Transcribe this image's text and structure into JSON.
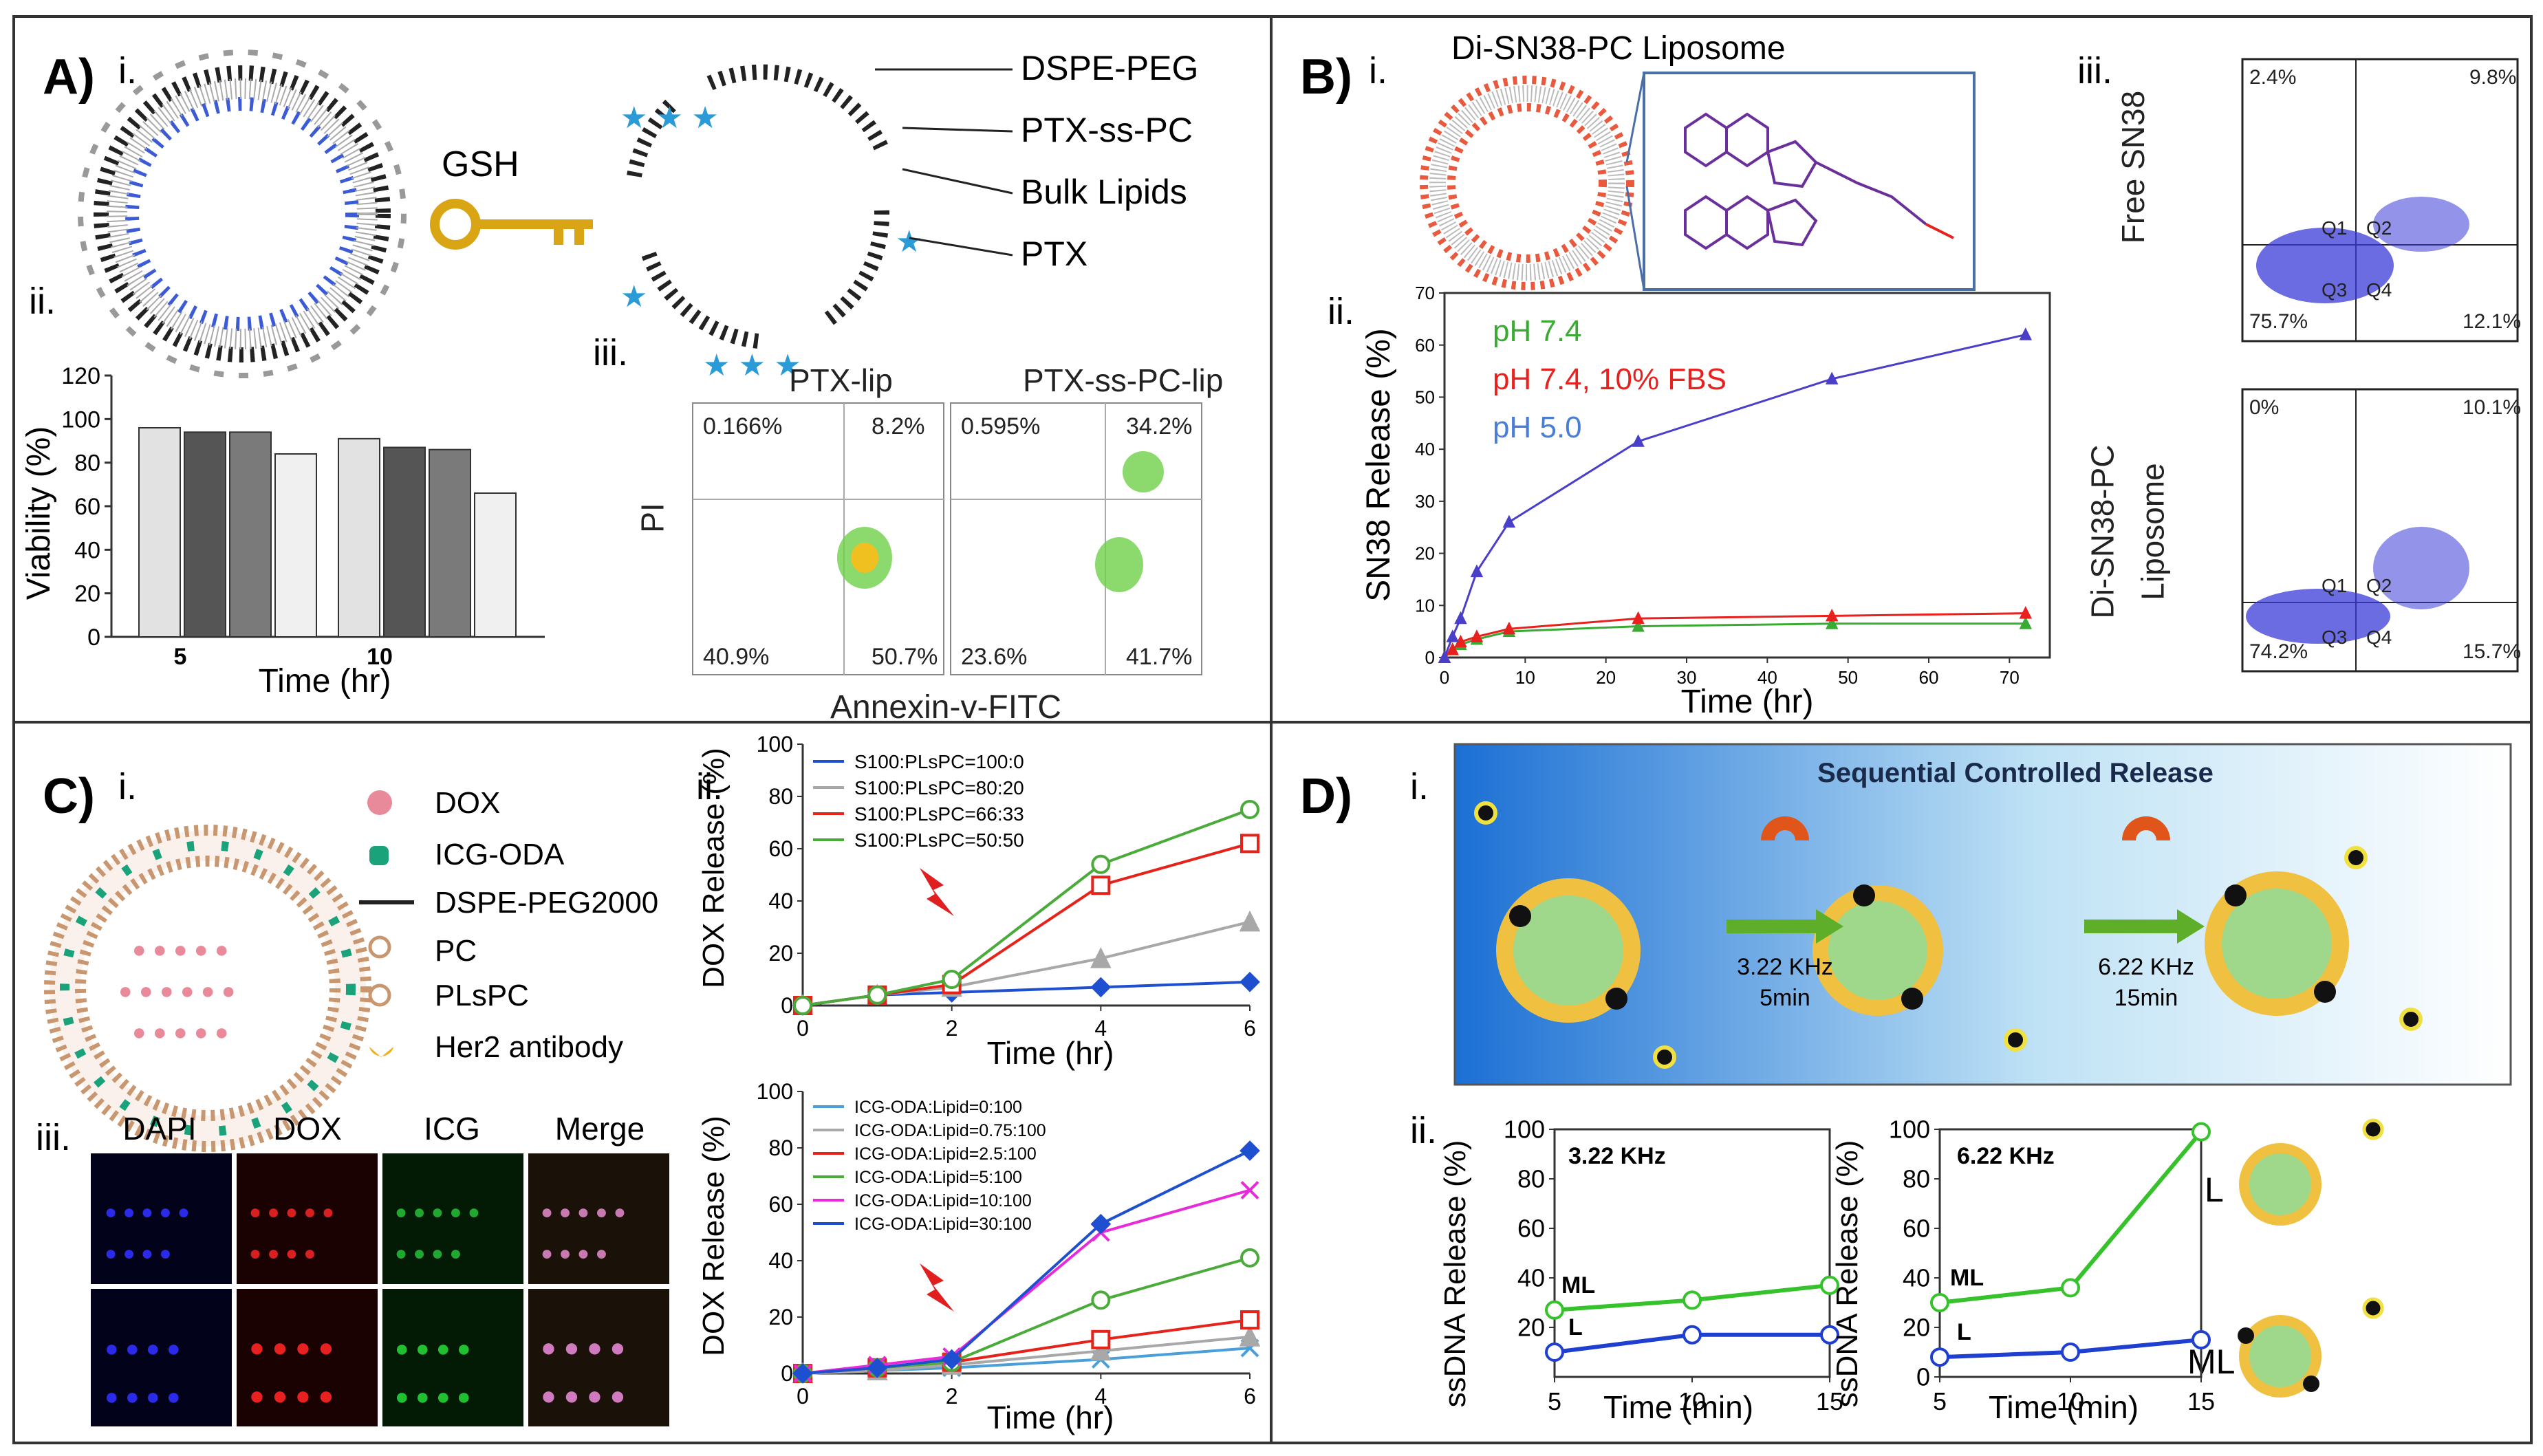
{
  "figure": {
    "A": {
      "letter": "A)",
      "sub_i": "i.",
      "sub_ii": "ii.",
      "sub_iii": "iii.",
      "gsh_label": "GSH",
      "legend": [
        "DSPE-PEG",
        "PTX-ss-PC",
        "Bulk Lipids",
        "PTX"
      ],
      "chart_ii": {
        "ylabel": "Viability (%)",
        "xlabel": "Time (hr)",
        "yticks": [
          "0",
          "20",
          "40",
          "60",
          "80",
          "100",
          "120"
        ],
        "groups": [
          "5",
          "10"
        ],
        "values": [
          [
            96,
            94,
            94,
            84
          ],
          [
            91,
            87,
            86,
            66
          ]
        ]
      },
      "flow_iii": {
        "ylabel": "PI",
        "xlabel": "Annexin-v-FITC",
        "plots": [
          {
            "title": "PTX-lip",
            "q_ul": "0.166%",
            "q_ur": "8.2%",
            "q_ll": "40.9%",
            "q_lr": "50.7%"
          },
          {
            "title": "PTX-ss-PC-lip",
            "q_ul": "0.595%",
            "q_ur": "34.2%",
            "q_ll": "23.6%",
            "q_lr": "41.7%"
          }
        ]
      }
    },
    "B": {
      "letter": "B)",
      "sub_i": "i.",
      "sub_ii": "ii.",
      "sub_iii": "iii.",
      "liposome_title": "Di-SN38-PC Liposome",
      "flow_iii": [
        {
          "label": "Free SN38",
          "q_ul": "2.4%",
          "q_ur": "9.8%",
          "q_ll": "75.7%",
          "q_lr": "12.1%",
          "q1": "Q1",
          "q2": "Q2",
          "q3": "Q3",
          "q4": "Q4"
        },
        {
          "label1": "Di-SN38-PC",
          "label2": "Liposome",
          "q_ul": "0%",
          "q_ur": "10.1%",
          "q_ll": "74.2%",
          "q_lr": "15.7%",
          "q1": "Q1",
          "q2": "Q2",
          "q3": "Q3",
          "q4": "Q4"
        }
      ]
    },
    "C": {
      "letter": "C)",
      "sub_i": "i.",
      "sub_ii": "ii.",
      "sub_iii": "iii.",
      "legend": [
        "DOX",
        "ICG-ODA",
        "DSPE-PEG2000",
        "PC",
        "PLsPC",
        "Her2 antibody"
      ],
      "micro_headers": [
        "DAPI",
        "DOX",
        "ICG",
        "Merge"
      ]
    },
    "D": {
      "letter": "D)",
      "sub_i": "i.",
      "sub_ii": "ii.",
      "scheme_title": "Sequential Controlled Release",
      "step1": [
        "3.22 KHz",
        "5min"
      ],
      "step2": [
        "6.22 KHz",
        "15min"
      ],
      "legend_L": "L",
      "legend_ML": "ML"
    }
  },
  "chart_data": [
    {
      "id": "B-ii",
      "type": "line",
      "title": "",
      "xlabel": "Time (hr)",
      "ylabel": "SN38 Release (%)",
      "xlim": [
        0,
        75
      ],
      "ylim": [
        0,
        70
      ],
      "xticks": [
        0,
        10,
        20,
        30,
        40,
        50,
        60,
        70
      ],
      "yticks": [
        0,
        10,
        20,
        30,
        40,
        50,
        60,
        70
      ],
      "series": [
        {
          "name": "pH 7.4",
          "color": "#3aaa35",
          "x": [
            0,
            1,
            2,
            4,
            8,
            24,
            48,
            72
          ],
          "y": [
            0,
            1.5,
            2.5,
            3.5,
            5,
            6,
            6.5,
            6.5
          ]
        },
        {
          "name": "pH 7.4, 10% FBS",
          "color": "#e8211e",
          "x": [
            0,
            1,
            2,
            4,
            8,
            24,
            48,
            72
          ],
          "y": [
            0,
            1.5,
            3,
            4,
            5.5,
            7.5,
            8,
            8.5
          ]
        },
        {
          "name": "pH 5.0",
          "color": "#4a3fc9",
          "x": [
            0,
            1,
            2,
            4,
            8,
            24,
            48,
            72
          ],
          "y": [
            0,
            4,
            7.5,
            16.5,
            26,
            41.5,
            53.5,
            62
          ]
        }
      ]
    },
    {
      "id": "C-ii-top",
      "type": "line",
      "xlabel": "Time (hr)",
      "ylabel": "DOX Release (%)",
      "xlim": [
        0,
        6
      ],
      "ylim": [
        0,
        100
      ],
      "xticks": [
        0,
        2,
        4,
        6
      ],
      "yticks": [
        0,
        20,
        40,
        60,
        80,
        100
      ],
      "series": [
        {
          "name": "S100:PLsPC=100:0",
          "color": "#1f4fd1",
          "marker": "diamond",
          "x": [
            0,
            1,
            2,
            4,
            6
          ],
          "y": [
            0,
            4,
            5,
            7,
            9
          ]
        },
        {
          "name": "S100:PLsPC=80:20",
          "color": "#a8a8a8",
          "marker": "triangle",
          "x": [
            0,
            1,
            2,
            4,
            6
          ],
          "y": [
            0,
            4,
            7,
            18,
            32
          ]
        },
        {
          "name": "S100:PLsPC=66:33",
          "color": "#e5231b",
          "marker": "square",
          "x": [
            0,
            1,
            2,
            4,
            6
          ],
          "y": [
            0,
            4,
            8,
            46,
            62
          ]
        },
        {
          "name": "S100:PLsPC=50:50",
          "color": "#4aaa3a",
          "marker": "circle",
          "x": [
            0,
            1,
            2,
            4,
            6
          ],
          "y": [
            0,
            4,
            10,
            54,
            75
          ]
        }
      ]
    },
    {
      "id": "C-ii-bottom",
      "type": "line",
      "xlabel": "Time (hr)",
      "ylabel": "DOX Release (%)",
      "xlim": [
        0,
        6
      ],
      "ylim": [
        0,
        100
      ],
      "xticks": [
        0,
        2,
        4,
        6
      ],
      "yticks": [
        0,
        20,
        40,
        60,
        80,
        100
      ],
      "series": [
        {
          "name": "ICG-ODA:Lipid=0:100",
          "color": "#4a9fd8",
          "marker": "x",
          "x": [
            0,
            1,
            2,
            4,
            6
          ],
          "y": [
            0,
            1,
            2,
            5,
            9
          ]
        },
        {
          "name": "ICG-ODA:Lipid=0.75:100",
          "color": "#a8a8a8",
          "marker": "triangle",
          "x": [
            0,
            1,
            2,
            4,
            6
          ],
          "y": [
            0,
            1,
            3,
            8,
            13
          ]
        },
        {
          "name": "ICG-ODA:Lipid=2.5:100",
          "color": "#e5231b",
          "marker": "square",
          "x": [
            0,
            1,
            2,
            4,
            6
          ],
          "y": [
            0,
            2,
            4,
            12,
            19
          ]
        },
        {
          "name": "ICG-ODA:Lipid=5:100",
          "color": "#4aaa3a",
          "marker": "circle",
          "x": [
            0,
            1,
            2,
            4,
            6
          ],
          "y": [
            0,
            2,
            4,
            26,
            41
          ]
        },
        {
          "name": "ICG-ODA:Lipid=10:100",
          "color": "#e82ad8",
          "marker": "star",
          "x": [
            0,
            1,
            2,
            4,
            6
          ],
          "y": [
            0,
            3,
            6,
            50,
            65
          ]
        },
        {
          "name": "ICG-ODA:Lipid=30:100",
          "color": "#1f4fd1",
          "marker": "diamond",
          "x": [
            0,
            1,
            2,
            4,
            6
          ],
          "y": [
            0,
            2,
            5,
            53,
            79
          ]
        }
      ]
    },
    {
      "id": "D-ii-left",
      "type": "line",
      "title": "3.22 KHz",
      "xlabel": "Time (min)",
      "ylabel": "ssDNA Release (%)",
      "xlim": [
        5,
        15
      ],
      "ylim": [
        0,
        100
      ],
      "xticks": [
        5,
        10,
        15
      ],
      "yticks": [
        20,
        40,
        60,
        80,
        100
      ],
      "series": [
        {
          "name": "ML",
          "color": "#35c22a",
          "x": [
            5,
            10,
            15
          ],
          "y": [
            27,
            31,
            37
          ]
        },
        {
          "name": "L",
          "color": "#1f3fd1",
          "x": [
            5,
            10,
            15
          ],
          "y": [
            10,
            17,
            17
          ]
        }
      ]
    },
    {
      "id": "D-ii-right",
      "type": "line",
      "title": "6.22 KHz",
      "xlabel": "Time (min)",
      "ylabel": "ssDNA Release (%)",
      "xlim": [
        5,
        15
      ],
      "ylim": [
        0,
        100
      ],
      "xticks": [
        5,
        10,
        15
      ],
      "yticks": [
        0,
        20,
        40,
        60,
        80,
        100
      ],
      "series": [
        {
          "name": "ML",
          "color": "#35c22a",
          "x": [
            5,
            10,
            15
          ],
          "y": [
            30,
            36,
            99
          ]
        },
        {
          "name": "L",
          "color": "#1f3fd1",
          "x": [
            5,
            10,
            15
          ],
          "y": [
            8,
            10,
            15
          ]
        }
      ]
    }
  ]
}
